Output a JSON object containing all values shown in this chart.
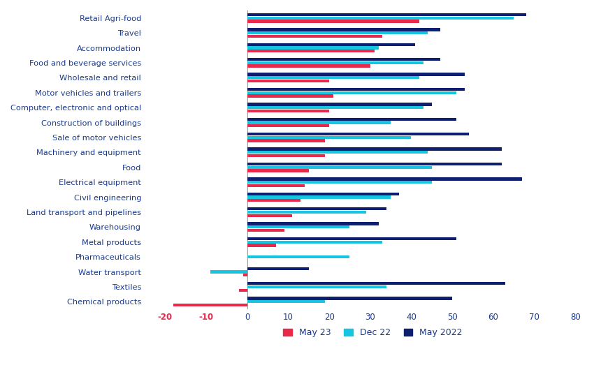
{
  "categories": [
    "Retail Agri-food",
    "Travel",
    "Accommodation",
    "Food and beverage services",
    "Wholesale and retail",
    "Motor vehicles and trailers",
    "Computer, electronic and optical",
    "Construction of buildings",
    "Sale of motor vehicles",
    "Machinery and equipment",
    "Food",
    "Electrical equipment",
    "Civil engineering",
    "Land transport and pipelines",
    "Warehousing",
    "Metal products",
    "Pharmaceuticals",
    "Water transport",
    "Textiles",
    "Chemical products"
  ],
  "may23": [
    42,
    33,
    31,
    30,
    20,
    21,
    20,
    20,
    19,
    19,
    15,
    14,
    13,
    11,
    9,
    7,
    0,
    -1,
    -2,
    -18
  ],
  "dec22": [
    65,
    44,
    32,
    43,
    42,
    51,
    43,
    35,
    40,
    44,
    45,
    45,
    35,
    29,
    25,
    33,
    25,
    -9,
    34,
    19
  ],
  "may2022": [
    68,
    47,
    41,
    47,
    53,
    53,
    45,
    51,
    54,
    62,
    62,
    67,
    37,
    34,
    32,
    51,
    0,
    15,
    63,
    50
  ],
  "color_may23": "#E8294A",
  "color_dec22": "#18C5E0",
  "color_may2022": "#0D1F6E",
  "xlim": [
    -25,
    82
  ],
  "xticks": [
    -20,
    -10,
    0,
    10,
    20,
    30,
    40,
    50,
    60,
    70,
    80
  ],
  "legend_labels": [
    "May 23",
    "Dec 22",
    "May 2022"
  ],
  "bar_height": 0.22,
  "label_color": "#1A3A8C",
  "neg_tick_color": "#E8294A"
}
